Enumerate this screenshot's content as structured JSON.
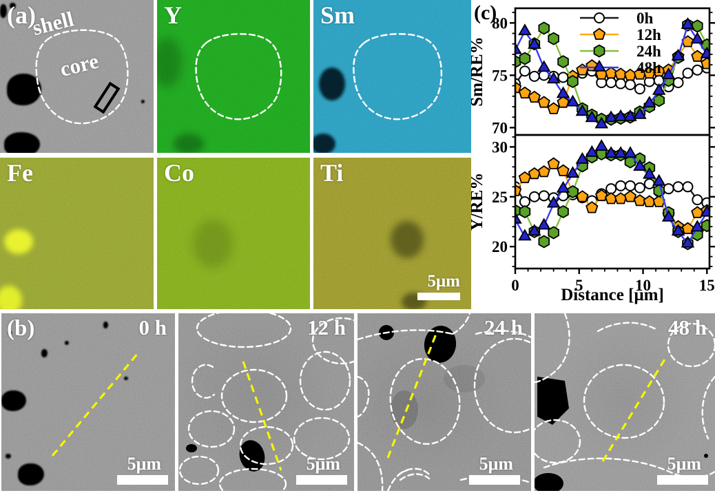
{
  "figure": {
    "panel_a": {
      "label": "(a)",
      "shell_label": "shell",
      "core_label": "core",
      "scale_bar_label": "5μm",
      "maps": [
        {
          "element": "Y",
          "color": "#1f9e1f"
        },
        {
          "element": "Sm",
          "color": "#2b95ba"
        },
        {
          "element": "Fe",
          "color": "#8d9c31"
        },
        {
          "element": "Co",
          "color": "#7aa61e"
        },
        {
          "element": "Ti",
          "color": "#94902e"
        }
      ]
    },
    "panel_b": {
      "label": "(b)",
      "frames": [
        {
          "time_label": "0 h",
          "scale_bar_label": "5μm"
        },
        {
          "time_label": "12 h",
          "scale_bar_label": "5μm"
        },
        {
          "time_label": "24 h",
          "scale_bar_label": "5μm"
        },
        {
          "time_label": "48 h",
          "scale_bar_label": "5μm"
        }
      ]
    },
    "panel_c": {
      "label": "(c)"
    }
  },
  "chart_data": [
    {
      "type": "line",
      "title": "",
      "ylabel": "Sm/RE%",
      "xlabel": "",
      "xlim": [
        0,
        15.2
      ],
      "ylim": [
        69.3,
        81.4
      ],
      "xticks": [
        0,
        5,
        10,
        15
      ],
      "yticks": [
        70,
        75,
        80
      ],
      "minor_step_x": 1,
      "minor_step_y": 1,
      "x_tick_labels_visible": false,
      "legend": {
        "show": true,
        "position": "top-center"
      },
      "x": [
        0,
        0.75,
        1.5,
        2.25,
        3,
        3.75,
        4.5,
        5.25,
        6,
        6.75,
        7.5,
        8.25,
        9,
        9.75,
        10.5,
        11.25,
        12,
        12.75,
        13.5,
        14.25,
        15
      ],
      "series": [
        {
          "name": "0h",
          "marker": "circle",
          "line_color": "#1a1a1a",
          "marker_fill": "#fbfeff",
          "values": [
            74.2,
            75.4,
            74.9,
            75.0,
            74.9,
            74.8,
            74.8,
            75.2,
            75.4,
            74.3,
            74.3,
            74.2,
            74.1,
            73.7,
            74.4,
            74.5,
            73.9,
            74.3,
            75.2,
            75.5,
            75.7
          ]
        },
        {
          "name": "12h",
          "marker": "pentagon",
          "line_color": "#ffac14",
          "marker_fill": "#ffa312",
          "values": [
            73.8,
            73.3,
            72.9,
            72.4,
            71.8,
            72.4,
            74.9,
            75.5,
            75.9,
            75.1,
            75.2,
            75.1,
            75.0,
            75.1,
            75.2,
            75.4,
            75.5,
            76.8,
            78.2,
            76.8,
            76.1
          ]
        },
        {
          "name": "24h",
          "marker": "hexagon",
          "line_color": "#86c03c",
          "marker_fill": "#5aa227",
          "values": [
            76.3,
            76.6,
            78.0,
            79.5,
            78.5,
            76.3,
            74.4,
            71.8,
            71.2,
            70.8,
            70.8,
            70.9,
            71.0,
            71.5,
            72.0,
            72.6,
            74.5,
            76.7,
            79.8,
            79.7,
            77.9
          ]
        },
        {
          "name": "48h",
          "marker": "triangle",
          "line_color": "#3a3af2",
          "marker_fill": "#2323cd",
          "values": [
            77.4,
            79.2,
            77.9,
            75.7,
            74.6,
            73.2,
            72.4,
            71.5,
            70.9,
            70.3,
            70.9,
            71.0,
            71.0,
            71.2,
            72.3,
            73.5,
            75.0,
            76.8,
            79.8,
            78.4,
            77.0
          ]
        }
      ]
    },
    {
      "type": "line",
      "title": "",
      "ylabel": "Y/RE%",
      "xlabel": "Distance [μm]",
      "xlim": [
        0,
        15.2
      ],
      "ylim": [
        17.8,
        31.2
      ],
      "xticks": [
        0,
        5,
        10,
        15
      ],
      "yticks": [
        20,
        25,
        30
      ],
      "minor_step_x": 1,
      "minor_step_y": 1,
      "x_tick_labels_visible": true,
      "legend": {
        "show": false
      },
      "x": [
        0,
        0.75,
        1.5,
        2.25,
        3,
        3.75,
        4.5,
        5.25,
        6,
        6.75,
        7.5,
        8.25,
        9,
        9.75,
        10.5,
        11.25,
        12,
        12.75,
        13.5,
        14.25,
        15
      ],
      "series": [
        {
          "name": "0h",
          "marker": "circle",
          "line_color": "#1a1a1a",
          "marker_fill": "#fbfeff",
          "values": [
            26.0,
            24.5,
            25.0,
            25.1,
            24.9,
            25.1,
            25.2,
            24.9,
            24.6,
            25.3,
            25.8,
            26.1,
            26.1,
            25.9,
            26.3,
            25.5,
            25.8,
            26.0,
            26.0,
            24.7,
            24.4
          ]
        },
        {
          "name": "12h",
          "marker": "pentagon",
          "line_color": "#ffac14",
          "marker_fill": "#ffa312",
          "values": [
            25.6,
            26.9,
            27.3,
            27.5,
            28.3,
            27.6,
            25.5,
            25.0,
            23.9,
            25.1,
            24.8,
            24.8,
            25.0,
            24.6,
            24.5,
            24.5,
            23.2,
            22.0,
            21.8,
            23.4,
            23.6
          ]
        },
        {
          "name": "24h",
          "marker": "hexagon",
          "line_color": "#86c03c",
          "marker_fill": "#5aa227",
          "values": [
            23.6,
            23.5,
            21.5,
            20.5,
            21.4,
            23.5,
            25.5,
            28.1,
            29.0,
            29.3,
            29.2,
            29.2,
            28.5,
            28.8,
            27.9,
            25.6,
            23.4,
            21.5,
            20.3,
            21.2,
            22.1
          ]
        },
        {
          "name": "48h",
          "marker": "triangle",
          "line_color": "#3a3af2",
          "marker_fill": "#2323cd",
          "values": [
            22.7,
            21.0,
            21.5,
            22.1,
            24.3,
            25.8,
            27.3,
            28.7,
            29.4,
            30.0,
            29.3,
            29.3,
            29.3,
            28.0,
            27.2,
            26.5,
            22.9,
            21.5,
            20.3,
            21.9,
            23.4
          ]
        }
      ]
    }
  ]
}
